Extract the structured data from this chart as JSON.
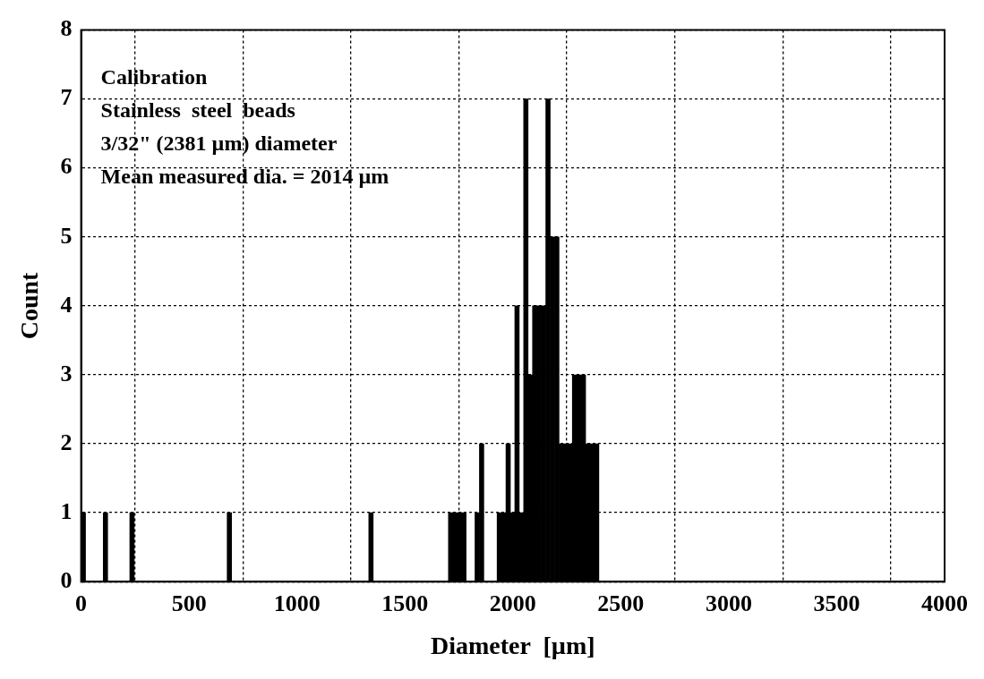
{
  "chart_data": {
    "type": "histogram",
    "xlabel": "Diameter  [µm]",
    "ylabel": "Count",
    "annotations": [
      "Calibration",
      "Stainless  steel  beads",
      "3/32\" (2381 µm) diameter",
      "Mean measured dia. = 2014 µm"
    ],
    "bins": [
      0,
      20.5,
      41,
      61.5,
      82,
      102.5,
      123,
      143.5,
      164,
      184.5,
      205,
      225.5,
      246,
      266.5,
      287,
      307.5,
      328,
      348.5,
      369,
      389.5,
      410,
      430.5,
      451,
      471.5,
      492,
      512.5,
      533,
      553.5,
      574,
      594.5,
      615,
      635.5,
      656,
      676.5,
      697,
      717.5,
      738,
      758.5,
      779,
      799.5,
      820,
      840.5,
      861,
      881.5,
      902,
      922.5,
      943,
      963.5,
      984,
      1004.5,
      1025,
      1045.5,
      1066,
      1086.5,
      1107,
      1127.5,
      1148,
      1168.5,
      1189,
      1209.5,
      1230,
      1250.5,
      1271,
      1291.5,
      1312,
      1332.5,
      1353,
      1373.5,
      1394,
      1414.5,
      1435,
      1455.5,
      1476,
      1496.5,
      1517,
      1537.5,
      1558,
      1578.5,
      1599,
      1619.5,
      1640,
      1660.5,
      1681,
      1701.5,
      1722,
      1742.5,
      1763,
      1783.5,
      1804,
      1824.5,
      1845,
      1865.5,
      1886,
      1906.5,
      1927,
      1947.5,
      1968,
      1988.5,
      2009,
      2029.5,
      2050,
      2070.5,
      2091,
      2111.5,
      2132,
      2152.5,
      2173,
      2193.5,
      2214,
      2234.5,
      2255,
      2275.5,
      2296,
      2316.5,
      2337,
      2357.5,
      2378,
      2398.5
    ],
    "values": [
      1,
      0,
      0,
      0,
      0,
      1,
      0,
      0,
      0,
      0,
      0,
      1,
      0,
      0,
      0,
      0,
      0,
      0,
      0,
      0,
      0,
      0,
      0,
      0,
      0,
      0,
      0,
      0,
      0,
      0,
      0,
      0,
      0,
      1,
      0,
      0,
      0,
      0,
      0,
      0,
      0,
      0,
      0,
      0,
      0,
      0,
      0,
      0,
      0,
      0,
      0,
      0,
      0,
      0,
      0,
      0,
      0,
      0,
      0,
      0,
      0,
      0,
      0,
      0,
      0,
      1,
      0,
      0,
      0,
      0,
      0,
      0,
      0,
      0,
      0,
      0,
      0,
      0,
      0,
      0,
      0,
      0,
      0,
      1,
      1,
      1,
      1,
      0,
      0,
      1,
      2,
      0,
      0,
      0,
      1,
      1,
      2,
      1,
      4,
      1,
      7,
      3,
      4,
      4,
      4,
      7,
      5,
      5,
      2,
      2,
      2,
      3,
      3,
      3,
      2,
      2,
      2
    ],
    "color": "#000000",
    "xlim": [
      0,
      4000
    ],
    "xticks": [
      0,
      500,
      1000,
      1500,
      2000,
      2500,
      3000,
      3500,
      4000
    ],
    "ylim": [
      0,
      8
    ],
    "yticks": [
      0,
      1,
      2,
      3,
      4,
      5,
      6,
      7,
      8
    ],
    "grid": true
  }
}
